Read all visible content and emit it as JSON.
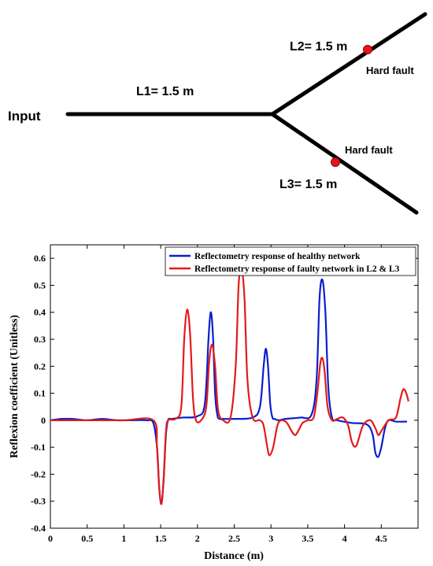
{
  "diagram": {
    "input_label": "Input",
    "segments": [
      {
        "id": "L1",
        "label": "L1= 1.5 m"
      },
      {
        "id": "L2",
        "label": "L2= 1.5 m"
      },
      {
        "id": "L3",
        "label": "L3= 1.5 m"
      }
    ],
    "faults": [
      {
        "on": "L2",
        "label": "Hard fault"
      },
      {
        "on": "L3",
        "label": "Hard fault"
      }
    ],
    "colors": {
      "line": "#000000",
      "fault": "#e8121d"
    }
  },
  "chart_data": {
    "type": "line",
    "xlabel": "Distance (m)",
    "ylabel": "Reflexion coefficient (Unitless)",
    "xlim": [
      0,
      5
    ],
    "ylim": [
      -0.4,
      0.65
    ],
    "xticks": [
      0,
      0.5,
      1,
      1.5,
      2,
      2.5,
      3,
      3.5,
      4,
      4.5
    ],
    "yticks": [
      -0.4,
      -0.3,
      -0.2,
      -0.1,
      0,
      0.1,
      0.2,
      0.3,
      0.4,
      0.5,
      0.6
    ],
    "legend_position": "top-right",
    "series": [
      {
        "name": "Reflectometry response of healthy network",
        "color": "#0a1ecc",
        "x": [
          0,
          0.15,
          0.3,
          0.5,
          0.7,
          0.9,
          1.1,
          1.3,
          1.4,
          1.45,
          1.48,
          1.51,
          1.54,
          1.57,
          1.6,
          1.65,
          1.8,
          2.0,
          2.1,
          2.15,
          2.18,
          2.21,
          2.24,
          2.27,
          2.3,
          2.35,
          2.5,
          2.75,
          2.85,
          2.9,
          2.93,
          2.96,
          2.99,
          3.02,
          3.05,
          3.1,
          3.2,
          3.4,
          3.55,
          3.62,
          3.66,
          3.7,
          3.74,
          3.78,
          3.83,
          3.9,
          4.1,
          4.3,
          4.38,
          4.42,
          4.46,
          4.5,
          4.55,
          4.6,
          4.7,
          4.85
        ],
        "y": [
          0,
          0.005,
          0.005,
          0,
          0.005,
          0,
          0,
          0,
          -0.01,
          -0.1,
          -0.25,
          -0.31,
          -0.22,
          -0.06,
          0,
          0.005,
          0.01,
          0.015,
          0.06,
          0.3,
          0.4,
          0.32,
          0.1,
          0.02,
          0.005,
          0.005,
          0.005,
          0.01,
          0.05,
          0.2,
          0.265,
          0.2,
          0.06,
          0.01,
          0.005,
          0,
          0.005,
          0.01,
          0.02,
          0.15,
          0.45,
          0.52,
          0.4,
          0.12,
          0.01,
          0,
          -0.01,
          -0.015,
          -0.05,
          -0.12,
          -0.135,
          -0.1,
          -0.03,
          0,
          -0.005,
          -0.005
        ]
      },
      {
        "name": "Reflectometry response of faulty network in L2 & L3",
        "color": "#e41a1a",
        "x": [
          0,
          0.5,
          1,
          1.4,
          1.45,
          1.48,
          1.51,
          1.54,
          1.57,
          1.6,
          1.7,
          1.78,
          1.82,
          1.86,
          1.9,
          1.94,
          1.98,
          2.05,
          2.12,
          2.16,
          2.2,
          2.24,
          2.28,
          2.35,
          2.45,
          2.52,
          2.56,
          2.6,
          2.64,
          2.68,
          2.75,
          2.85,
          2.9,
          2.95,
          2.98,
          3.03,
          3.1,
          3.2,
          3.28,
          3.33,
          3.38,
          3.43,
          3.5,
          3.58,
          3.63,
          3.67,
          3.7,
          3.73,
          3.77,
          3.83,
          3.9,
          3.98,
          4.05,
          4.1,
          4.16,
          4.25,
          4.35,
          4.42,
          4.46,
          4.5,
          4.6,
          4.7,
          4.76,
          4.8,
          4.84,
          4.87
        ],
        "y": [
          0,
          0,
          0,
          0,
          -0.1,
          -0.25,
          -0.31,
          -0.22,
          -0.05,
          0,
          0.005,
          0.05,
          0.3,
          0.41,
          0.32,
          0.08,
          0,
          0,
          0.05,
          0.22,
          0.28,
          0.2,
          0.04,
          0,
          0.01,
          0.2,
          0.5,
          0.56,
          0.45,
          0.15,
          0.01,
          0,
          -0.02,
          -0.1,
          -0.13,
          -0.1,
          -0.01,
          -0.005,
          -0.04,
          -0.055,
          -0.035,
          -0.01,
          0,
          0.01,
          0.1,
          0.21,
          0.23,
          0.18,
          0.05,
          0,
          0.005,
          0.01,
          -0.02,
          -0.08,
          -0.095,
          -0.02,
          0,
          -0.03,
          -0.055,
          -0.04,
          0,
          0.01,
          0.08,
          0.115,
          0.1,
          0.07
        ]
      }
    ]
  }
}
